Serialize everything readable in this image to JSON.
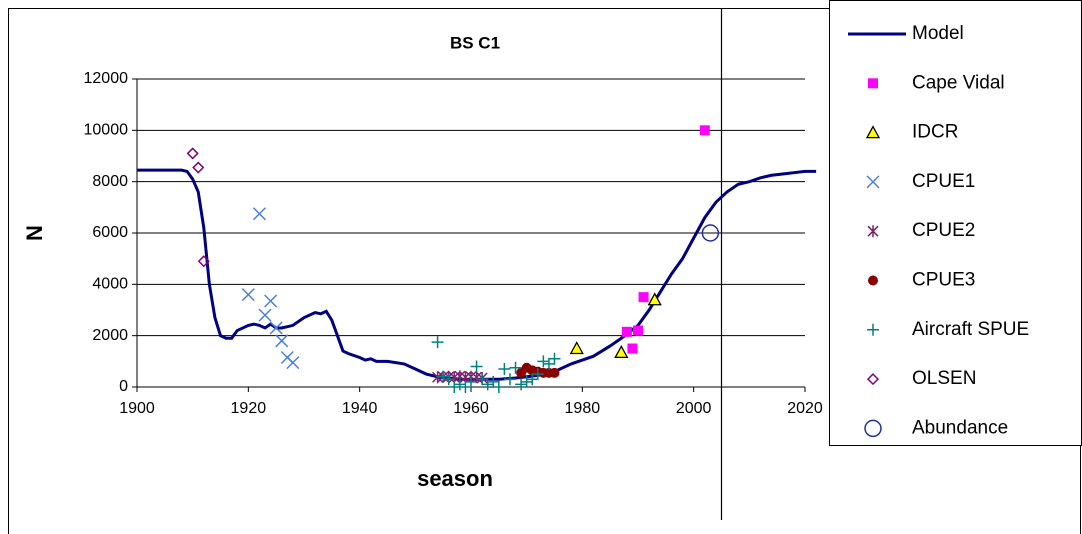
{
  "chart_data": {
    "type": "scatter",
    "title": "BS C1",
    "x_label": "season",
    "y_label": "N",
    "xlim": [
      1900,
      2020
    ],
    "xticks": [
      1900,
      1920,
      1940,
      1960,
      1980,
      2000,
      2020
    ],
    "ylim": [
      0,
      12000
    ],
    "yticks": [
      0,
      2000,
      4000,
      6000,
      8000,
      10000,
      12000
    ],
    "grid": true,
    "legend": "right",
    "reference_line_x": 2005,
    "series": [
      {
        "name": "Model",
        "mode": "line",
        "color": "#000080",
        "x": [
          1900,
          1908,
          1909,
          1910,
          1911,
          1912,
          1913,
          1914,
          1915,
          1916,
          1917,
          1918,
          1920,
          1921,
          1922,
          1923,
          1924,
          1925,
          1926,
          1927,
          1928,
          1930,
          1932,
          1933,
          1934,
          1935,
          1936,
          1937,
          1938,
          1940,
          1941,
          1942,
          1943,
          1945,
          1948,
          1950,
          1952,
          1954,
          1956,
          1958,
          1960,
          1963,
          1965,
          1968,
          1970,
          1972,
          1975,
          1978,
          1980,
          1982,
          1985,
          1987,
          1990,
          1992,
          1994,
          1996,
          1998,
          2000,
          2002,
          2004,
          2006,
          2008,
          2010,
          2012,
          2014,
          2016,
          2018,
          2020,
          2022
        ],
        "values": [
          8450,
          8450,
          8400,
          8100,
          7600,
          6200,
          4000,
          2700,
          2000,
          1900,
          1900,
          2200,
          2400,
          2450,
          2400,
          2300,
          2450,
          2300,
          2300,
          2350,
          2400,
          2700,
          2900,
          2850,
          2950,
          2600,
          2000,
          1400,
          1300,
          1150,
          1050,
          1100,
          1000,
          1000,
          900,
          700,
          500,
          400,
          350,
          300,
          300,
          300,
          300,
          350,
          400,
          450,
          600,
          900,
          1050,
          1200,
          1600,
          1900,
          2400,
          3000,
          3700,
          4400,
          5000,
          5800,
          6600,
          7200,
          7600,
          7900,
          8000,
          8150,
          8250,
          8300,
          8350,
          8400,
          8400
        ]
      },
      {
        "name": "Cape Vidal",
        "mode": "markers",
        "marker": "square",
        "color": "#ff00ff",
        "x": [
          1988,
          1989,
          1990,
          1991,
          2002
        ],
        "values": [
          2150,
          1500,
          2200,
          3500,
          10000
        ]
      },
      {
        "name": "IDCR",
        "mode": "markers",
        "marker": "triangle",
        "color": "#ffff00",
        "x": [
          1979,
          1987,
          1993
        ],
        "values": [
          1500,
          1350,
          3400
        ]
      },
      {
        "name": "CPUE1",
        "mode": "markers",
        "marker": "x",
        "color": "#4a7fe0",
        "x": [
          1920,
          1922,
          1923,
          1924,
          1925,
          1926,
          1927,
          1928
        ],
        "values": [
          3600,
          6750,
          2800,
          3350,
          2300,
          1800,
          1150,
          950
        ]
      },
      {
        "name": "CPUE2",
        "mode": "markers",
        "marker": "star",
        "color": "#7b1f6e",
        "x": [
          1954,
          1955,
          1956,
          1957,
          1958,
          1959,
          1960,
          1961,
          1962
        ],
        "values": [
          380,
          400,
          400,
          380,
          420,
          380,
          400,
          380,
          350
        ]
      },
      {
        "name": "CPUE3",
        "mode": "markers",
        "marker": "dot",
        "color": "#8b0000",
        "x": [
          1969,
          1970,
          1971,
          1972,
          1973,
          1974,
          1975
        ],
        "values": [
          550,
          750,
          650,
          600,
          550,
          550,
          550
        ]
      },
      {
        "name": "Aircraft SPUE",
        "mode": "markers",
        "marker": "plus",
        "color": "#008080",
        "x": [
          1954,
          1955,
          1956,
          1957,
          1958,
          1959,
          1960,
          1961,
          1962,
          1963,
          1964,
          1965,
          1966,
          1967,
          1968,
          1969,
          1970,
          1971,
          1972,
          1973,
          1974,
          1975
        ],
        "values": [
          1750,
          400,
          300,
          0,
          100,
          0,
          200,
          800,
          300,
          100,
          200,
          0,
          700,
          300,
          750,
          100,
          200,
          300,
          500,
          1000,
          900,
          1100
        ]
      },
      {
        "name": "OLSEN",
        "mode": "markers",
        "marker": "diamond",
        "color": "#800080",
        "x": [
          1910,
          1911,
          1912
        ],
        "values": [
          9100,
          8550,
          4900
        ]
      },
      {
        "name": "Abundance",
        "mode": "markers",
        "marker": "circle",
        "color": "#1f2f9f",
        "x": [
          2003
        ],
        "values": [
          6000
        ]
      }
    ]
  }
}
